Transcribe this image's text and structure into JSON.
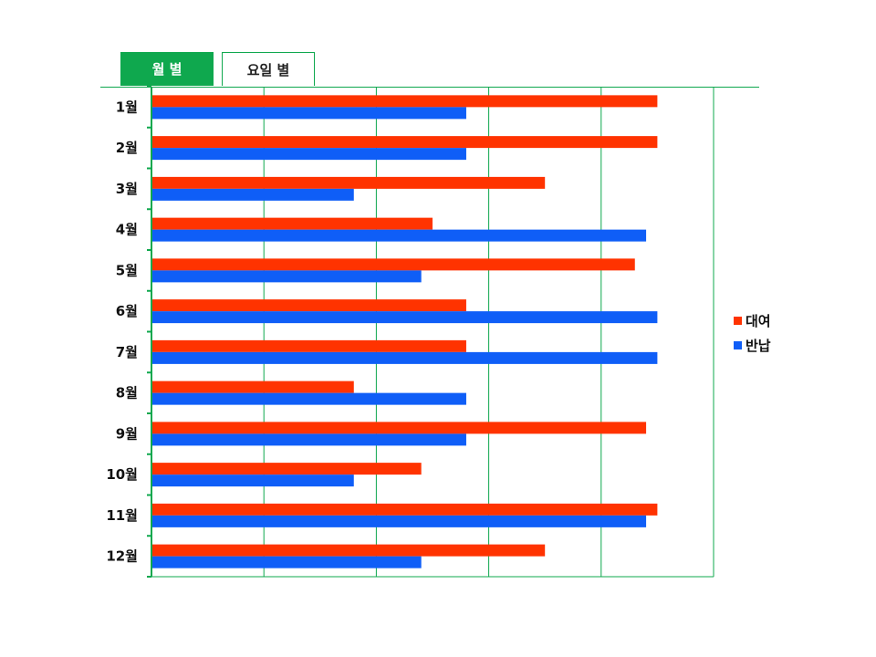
{
  "tabs": [
    {
      "label": "월 별",
      "active": true
    },
    {
      "label": "요일 별",
      "active": false
    }
  ],
  "colors": {
    "accent": "#0fa84e",
    "rental": "#ff3300",
    "return": "#0f5ef7"
  },
  "chart_data": {
    "type": "bar",
    "orientation": "horizontal",
    "categories": [
      "1월",
      "2월",
      "3월",
      "4월",
      "5월",
      "6월",
      "7월",
      "8월",
      "9월",
      "10월",
      "11월",
      "12월"
    ],
    "series": [
      {
        "name": "대여",
        "color": "#ff3300",
        "values": [
          45,
          45,
          35,
          25,
          43,
          28,
          28,
          18,
          44,
          24,
          45,
          35
        ]
      },
      {
        "name": "반납",
        "color": "#0f5ef7",
        "values": [
          28,
          28,
          18,
          44,
          24,
          45,
          45,
          28,
          28,
          18,
          44,
          24
        ]
      }
    ],
    "xlim": [
      0,
      50
    ],
    "grid": true,
    "legend": "right",
    "title": "",
    "xlabel": "",
    "ylabel": ""
  }
}
